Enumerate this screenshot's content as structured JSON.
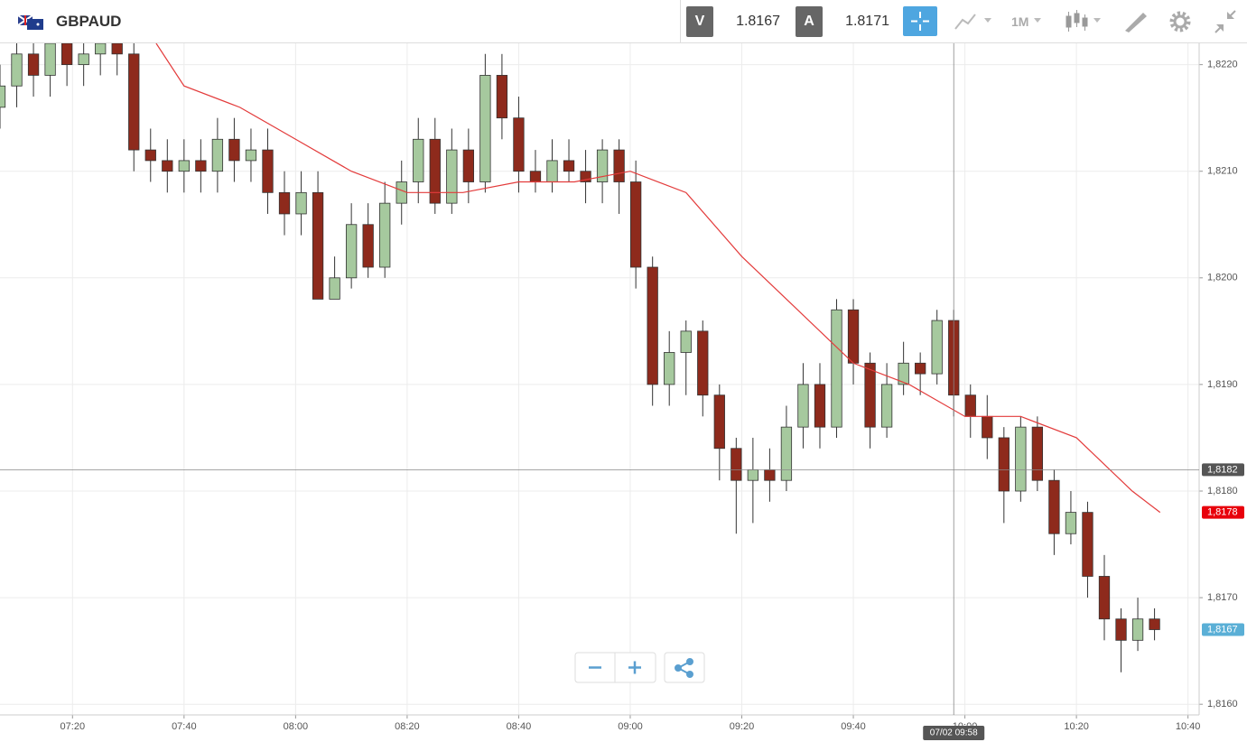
{
  "header": {
    "symbol": "GBPAUD",
    "bid_letter": "V",
    "bid": 1.8167,
    "ask_letter": "A",
    "ask": 1.8171,
    "timeframe": "1M"
  },
  "chart_data": {
    "type": "candlestick",
    "x": [
      427,
      430,
      433,
      436,
      439,
      442,
      445,
      448,
      451,
      454,
      457,
      460,
      463,
      466,
      469,
      472,
      475,
      478,
      481,
      484,
      487,
      490,
      493,
      496,
      499,
      502,
      505,
      508,
      511,
      514,
      517,
      520,
      523,
      526,
      529,
      532,
      535,
      538,
      541,
      544,
      547,
      550,
      553,
      556,
      559,
      562,
      565,
      568,
      571,
      574,
      577,
      580,
      583,
      586,
      589,
      592,
      595,
      598,
      601,
      604,
      607,
      610,
      613,
      616,
      619,
      622,
      625,
      628,
      631,
      634
    ],
    "open": [
      1.8216,
      1.8218,
      1.8221,
      1.8219,
      1.8222,
      1.822,
      1.8221,
      1.8222,
      1.8221,
      1.8212,
      1.8211,
      1.821,
      1.8211,
      1.821,
      1.8213,
      1.8211,
      1.8212,
      1.8208,
      1.8206,
      1.8208,
      1.8198,
      1.82,
      1.8205,
      1.8201,
      1.8207,
      1.8209,
      1.8213,
      1.8207,
      1.8212,
      1.8209,
      1.8219,
      1.8215,
      1.821,
      1.8209,
      1.8211,
      1.821,
      1.8209,
      1.8212,
      1.8209,
      1.8201,
      1.819,
      1.8193,
      1.8195,
      1.8189,
      1.8184,
      1.8181,
      1.8182,
      1.8181,
      1.8186,
      1.819,
      1.8186,
      1.8197,
      1.8192,
      1.8186,
      1.819,
      1.8192,
      1.8191,
      1.8196,
      1.8189,
      1.8187,
      1.8185,
      1.818,
      1.8186,
      1.8181,
      1.8176,
      1.8178,
      1.8172,
      1.8168,
      1.8166,
      1.8168
    ],
    "high": [
      1.822,
      1.8223,
      1.8223,
      1.8224,
      1.8224,
      1.8223,
      1.8224,
      1.8224,
      1.8223,
      1.8214,
      1.8213,
      1.8213,
      1.8213,
      1.8215,
      1.8215,
      1.8214,
      1.8214,
      1.821,
      1.821,
      1.821,
      1.8202,
      1.8207,
      1.8207,
      1.8209,
      1.8211,
      1.8215,
      1.8215,
      1.8214,
      1.8214,
      1.8221,
      1.8221,
      1.8217,
      1.8212,
      1.8213,
      1.8213,
      1.8212,
      1.8213,
      1.8213,
      1.8211,
      1.8202,
      1.8195,
      1.8196,
      1.8196,
      1.819,
      1.8185,
      1.8185,
      1.8184,
      1.8188,
      1.8192,
      1.8192,
      1.8198,
      1.8198,
      1.8193,
      1.8192,
      1.8194,
      1.8193,
      1.8197,
      1.8197,
      1.819,
      1.8189,
      1.8186,
      1.8187,
      1.8187,
      1.8182,
      1.818,
      1.8179,
      1.8174,
      1.8169,
      1.817,
      1.8169
    ],
    "low": [
      1.8214,
      1.8216,
      1.8217,
      1.8217,
      1.8218,
      1.8218,
      1.8219,
      1.8219,
      1.821,
      1.8209,
      1.8208,
      1.8208,
      1.8208,
      1.8208,
      1.8209,
      1.8209,
      1.8206,
      1.8204,
      1.8204,
      1.8198,
      1.8198,
      1.8199,
      1.82,
      1.82,
      1.8205,
      1.8207,
      1.8206,
      1.8206,
      1.8207,
      1.8208,
      1.8213,
      1.8208,
      1.8208,
      1.8208,
      1.8209,
      1.8207,
      1.8207,
      1.8206,
      1.8199,
      1.8188,
      1.8188,
      1.8189,
      1.8187,
      1.8181,
      1.8176,
      1.8177,
      1.8179,
      1.818,
      1.8184,
      1.8184,
      1.8185,
      1.819,
      1.8184,
      1.8185,
      1.8189,
      1.8189,
      1.819,
      1.8187,
      1.8185,
      1.8183,
      1.8177,
      1.8179,
      1.818,
      1.8174,
      1.8175,
      1.817,
      1.8166,
      1.8163,
      1.8165,
      1.8166
    ],
    "close": [
      1.8218,
      1.8221,
      1.8219,
      1.8222,
      1.822,
      1.8221,
      1.8222,
      1.8221,
      1.8212,
      1.8211,
      1.821,
      1.8211,
      1.821,
      1.8213,
      1.8211,
      1.8212,
      1.8208,
      1.8206,
      1.8208,
      1.8198,
      1.82,
      1.8205,
      1.8201,
      1.8207,
      1.8209,
      1.8213,
      1.8207,
      1.8212,
      1.8209,
      1.8219,
      1.8215,
      1.821,
      1.8209,
      1.8211,
      1.821,
      1.8209,
      1.8212,
      1.8209,
      1.8201,
      1.819,
      1.8193,
      1.8195,
      1.8189,
      1.8184,
      1.8181,
      1.8182,
      1.8181,
      1.8186,
      1.819,
      1.8186,
      1.8197,
      1.8192,
      1.8186,
      1.819,
      1.8192,
      1.8191,
      1.8196,
      1.8189,
      1.8187,
      1.8185,
      1.818,
      1.8186,
      1.8181,
      1.8176,
      1.8178,
      1.8172,
      1.8168,
      1.8166,
      1.8168,
      1.8167
    ],
    "up_color": "#a6c99e",
    "down_color": "#8e2a1c",
    "overlays": [
      {
        "type": "line",
        "color": "#e33b3b",
        "x": [
          455,
          460,
          470,
          480,
          490,
          500,
          505,
          510,
          520,
          530,
          540,
          545,
          550,
          560,
          570,
          580,
          590,
          600,
          605,
          610,
          620,
          630,
          635
        ],
        "values": [
          1.8222,
          1.8218,
          1.8216,
          1.8213,
          1.821,
          1.8208,
          1.8208,
          1.8208,
          1.8209,
          1.8209,
          1.821,
          1.8209,
          1.8208,
          1.8202,
          1.8197,
          1.8192,
          1.819,
          1.8187,
          1.8187,
          1.8187,
          1.8185,
          1.818,
          1.8178
        ]
      }
    ],
    "xlim": [
      427,
      642
    ],
    "xticks": [
      {
        "value": 440,
        "label": "07:20"
      },
      {
        "value": 460,
        "label": "07:40"
      },
      {
        "value": 480,
        "label": "08:00"
      },
      {
        "value": 500,
        "label": "08:20"
      },
      {
        "value": 520,
        "label": "08:40"
      },
      {
        "value": 540,
        "label": "09:00"
      },
      {
        "value": 560,
        "label": "09:20"
      },
      {
        "value": 580,
        "label": "09:40"
      },
      {
        "value": 600,
        "label": "10:00"
      },
      {
        "value": 620,
        "label": "10:20"
      },
      {
        "value": 640,
        "label": "10:40"
      }
    ],
    "ylim": [
      1.8159,
      1.8222
    ],
    "yticks": [
      {
        "value": 1.816,
        "label": "1,8160"
      },
      {
        "value": 1.817,
        "label": "1,8170"
      },
      {
        "value": 1.818,
        "label": "1,8180"
      },
      {
        "value": 1.819,
        "label": "1,8190"
      },
      {
        "value": 1.82,
        "label": "1,8200"
      },
      {
        "value": 1.821,
        "label": "1,8210"
      },
      {
        "value": 1.822,
        "label": "1,8220"
      }
    ],
    "grid": true,
    "crosshair": {
      "x": {
        "value": 598,
        "label": "07/02 09:58"
      },
      "y": {
        "value": 1.8182,
        "label": "1,8182"
      }
    },
    "price_markers": [
      {
        "value": 1.8178,
        "label": "1,8178",
        "color": "#e8000b"
      },
      {
        "value": 1.8167,
        "label": "1,8167",
        "color": "#5aafd6"
      }
    ]
  }
}
